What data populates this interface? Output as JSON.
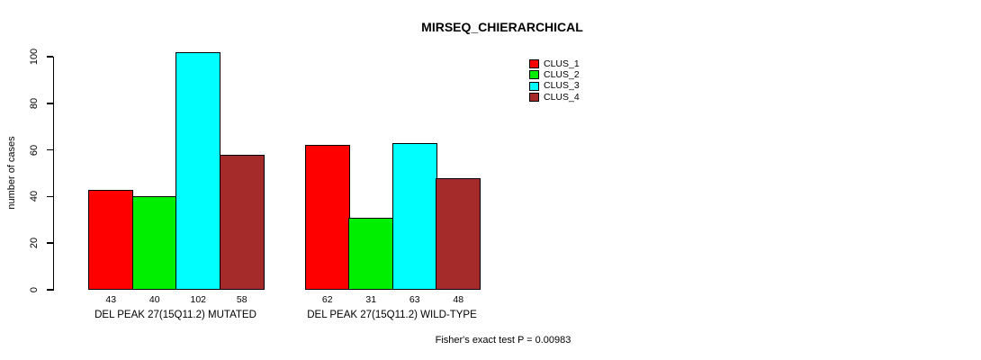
{
  "title": "MIRSEQ_CHIERARCHICAL",
  "footer": "Fisher's exact test P = 0.00983",
  "y_axis": {
    "label": "number of cases",
    "tick_labels": [
      "0",
      "20",
      "40",
      "60",
      "80",
      "100"
    ]
  },
  "legend": {
    "items": [
      {
        "label": "CLUS_1",
        "color": "#FF0000"
      },
      {
        "label": "CLUS_2",
        "color": "#00EE00"
      },
      {
        "label": "CLUS_3",
        "color": "#00FFFF"
      },
      {
        "label": "CLUS_4",
        "color": "#A52A2A"
      }
    ]
  },
  "chart_data": {
    "type": "bar",
    "title": "MIRSEQ_CHIERARCHICAL",
    "xlabel": "",
    "ylabel": "number of cases",
    "ylim": [
      0,
      100
    ],
    "yticks": [
      0,
      20,
      40,
      60,
      80,
      100
    ],
    "grid": false,
    "legend_position": "top-right",
    "categories": [
      "DEL PEAK 27(15Q11.2) MUTATED",
      "DEL PEAK 27(15Q11.2) WILD-TYPE"
    ],
    "series": [
      {
        "name": "CLUS_1",
        "color": "#FF0000",
        "values": [
          43,
          62
        ]
      },
      {
        "name": "CLUS_2",
        "color": "#00EE00",
        "values": [
          40,
          31
        ]
      },
      {
        "name": "CLUS_3",
        "color": "#00FFFF",
        "values": [
          102,
          63
        ]
      },
      {
        "name": "CLUS_4",
        "color": "#A52A2A",
        "values": [
          58,
          48
        ]
      }
    ],
    "bar_value_labels": [
      [
        43,
        40,
        102,
        58
      ],
      [
        62,
        31,
        63,
        48
      ]
    ],
    "annotation": "Fisher's exact test P = 0.00983"
  }
}
